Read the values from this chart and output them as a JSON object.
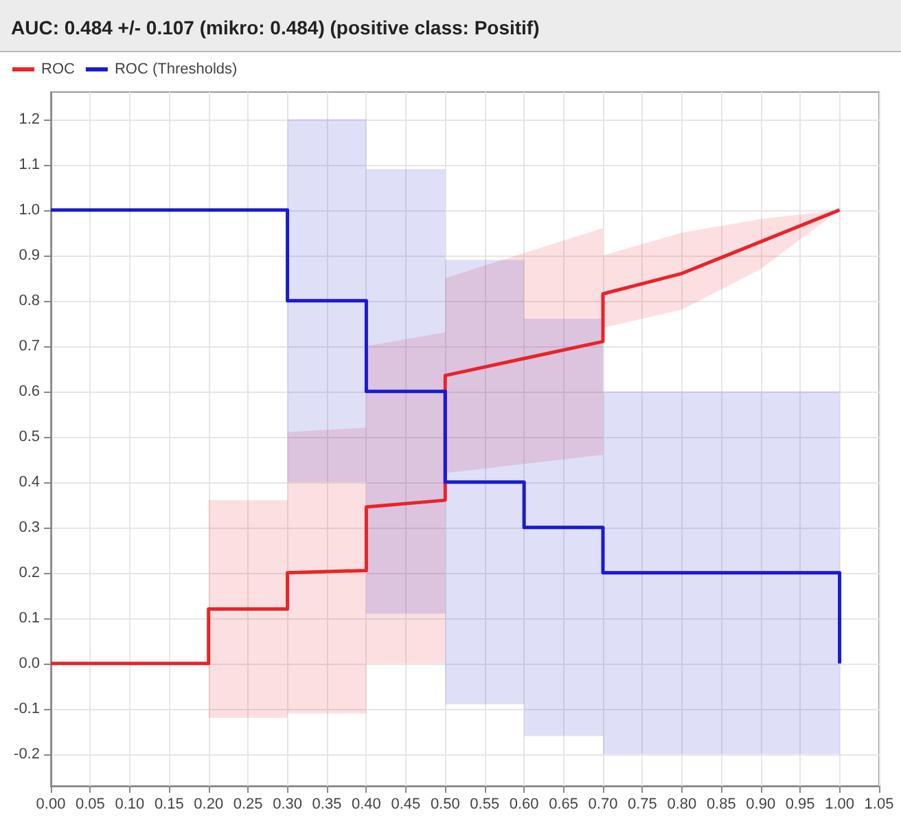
{
  "chart_data": {
    "type": "line",
    "title": "AUC: 0.484 +/- 0.107 (mikro: 0.484) (positive class: Positif)",
    "series": [
      {
        "name": "ROC",
        "color": "#e8242a",
        "x": [
          0,
          0.2,
          0.2,
          0.3,
          0.3,
          0.4,
          0.4,
          0.5,
          0.5,
          0.7,
          0.7,
          0.8,
          0.9,
          1.0
        ],
        "values": [
          0,
          0,
          0.12,
          0.12,
          0.2,
          0.205,
          0.345,
          0.36,
          0.635,
          0.71,
          0.815,
          0.86,
          0.93,
          1.0
        ],
        "lower": [
          0,
          0,
          -0.12,
          -0.12,
          -0.11,
          -0.11,
          0,
          0,
          0.42,
          0.46,
          0.74,
          0.78,
          0.87,
          1.0
        ],
        "upper": [
          0,
          0,
          0.36,
          0.36,
          0.51,
          0.52,
          0.7,
          0.73,
          0.85,
          0.96,
          0.9,
          0.95,
          0.98,
          1.0
        ]
      },
      {
        "name": "ROC (Thresholds)",
        "color": "#1a1ad0",
        "x": [
          0,
          0.3,
          0.3,
          0.4,
          0.4,
          0.5,
          0.5,
          0.6,
          0.6,
          0.7,
          0.7,
          1.0,
          1.0
        ],
        "values": [
          1,
          1,
          0.8,
          0.8,
          0.6,
          0.6,
          0.4,
          0.4,
          0.3,
          0.3,
          0.2,
          0.2,
          0
        ],
        "lower": [
          1,
          1,
          0.4,
          0.4,
          0.11,
          0.11,
          -0.09,
          -0.09,
          -0.16,
          -0.16,
          -0.2,
          -0.2,
          -0.2
        ],
        "upper": [
          1,
          1,
          1.2,
          1.2,
          1.09,
          1.09,
          0.89,
          0.89,
          0.76,
          0.76,
          0.6,
          0.6,
          0.6
        ]
      }
    ],
    "xlim": [
      0,
      1.05
    ],
    "xticks": [
      {
        "value": 0,
        "label": "0.00"
      },
      {
        "value": 0.05,
        "label": "0.05"
      },
      {
        "value": 0.1,
        "label": "0.10"
      },
      {
        "value": 0.15,
        "label": "0.15"
      },
      {
        "value": 0.2,
        "label": "0.20"
      },
      {
        "value": 0.25,
        "label": "0.25"
      },
      {
        "value": 0.3,
        "label": "0.30"
      },
      {
        "value": 0.35,
        "label": "0.35"
      },
      {
        "value": 0.4,
        "label": "0.40"
      },
      {
        "value": 0.45,
        "label": "0.45"
      },
      {
        "value": 0.5,
        "label": "0.50"
      },
      {
        "value": 0.55,
        "label": "0.55"
      },
      {
        "value": 0.6,
        "label": "0.60"
      },
      {
        "value": 0.65,
        "label": "0.65"
      },
      {
        "value": 0.7,
        "label": "0.70"
      },
      {
        "value": 0.75,
        "label": "0.75"
      },
      {
        "value": 0.8,
        "label": "0.80"
      },
      {
        "value": 0.85,
        "label": "0.85"
      },
      {
        "value": 0.9,
        "label": "0.90"
      },
      {
        "value": 0.95,
        "label": "0.95"
      },
      {
        "value": 1.0,
        "label": "1.00"
      },
      {
        "value": 1.05,
        "label": "1.05"
      }
    ],
    "ylim": [
      -0.27,
      1.26
    ],
    "yticks": [
      {
        "value": -0.2,
        "label": "-0.2"
      },
      {
        "value": -0.1,
        "label": "-0.1"
      },
      {
        "value": 0,
        "label": "0.0"
      },
      {
        "value": 0.1,
        "label": "0.1"
      },
      {
        "value": 0.2,
        "label": "0.2"
      },
      {
        "value": 0.3,
        "label": "0.3"
      },
      {
        "value": 0.4,
        "label": "0.4"
      },
      {
        "value": 0.5,
        "label": "0.5"
      },
      {
        "value": 0.6,
        "label": "0.6"
      },
      {
        "value": 0.7,
        "label": "0.7"
      },
      {
        "value": 0.8,
        "label": "0.8"
      },
      {
        "value": 0.9,
        "label": "0.9"
      },
      {
        "value": 1.0,
        "label": "1.0"
      },
      {
        "value": 1.1,
        "label": "1.1"
      },
      {
        "value": 1.2,
        "label": "1.2"
      }
    ],
    "grid": true,
    "legend": "top left"
  }
}
